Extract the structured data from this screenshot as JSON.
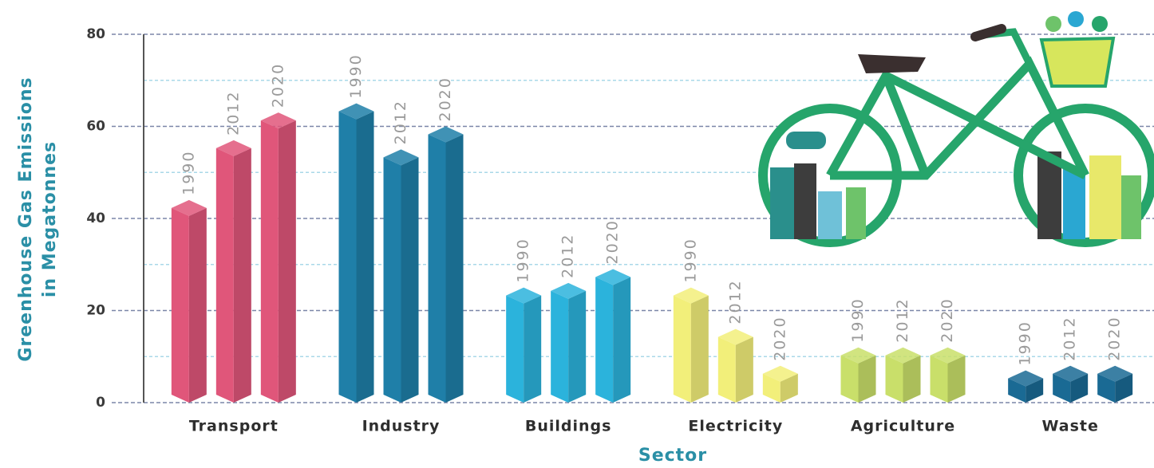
{
  "chart_data": {
    "type": "bar",
    "xlabel": "Sector",
    "ylabel": [
      "Greenhouse Gas Emissions",
      "in Megatonnes"
    ],
    "categories": [
      "Transport",
      "Industry",
      "Buildings",
      "Electricity",
      "Agriculture",
      "Waste"
    ],
    "colors": [
      "#e0567a",
      "#1f7fa8",
      "#2bb3dc",
      "#f2ef7a",
      "#c9df6a",
      "#1a6a94"
    ],
    "series": [
      {
        "name": "1990",
        "values": [
          44,
          65,
          25,
          25,
          12,
          7
        ]
      },
      {
        "name": "2012",
        "values": [
          57,
          55,
          26,
          16,
          12,
          8
        ]
      },
      {
        "name": "2020",
        "values": [
          63,
          60,
          29,
          8,
          12,
          8
        ]
      }
    ],
    "ylim": [
      0,
      80
    ],
    "yticks": [
      0,
      20,
      40,
      60,
      80
    ],
    "minor_yticks": [
      10,
      30,
      50,
      70
    ],
    "grid": true
  }
}
